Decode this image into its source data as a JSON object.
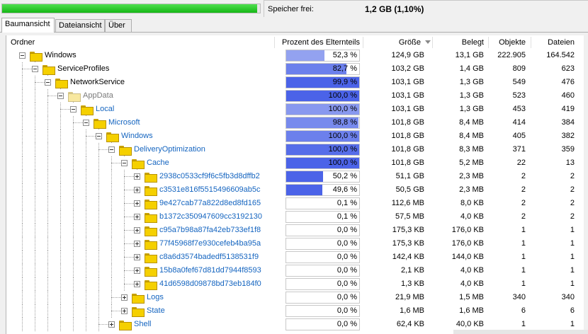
{
  "status": {
    "free_label": "Speicher frei:",
    "free_value": "1,2 GB  (1,10%)",
    "progress_percent": 98.9,
    "progress_color": "#22c022"
  },
  "tabs": [
    {
      "label": "Baumansicht",
      "active": true
    },
    {
      "label": "Dateiansicht",
      "active": false
    },
    {
      "label": "Über",
      "active": false
    }
  ],
  "columns": {
    "folder": "Ordner",
    "percent": "Prozent des Elternteils",
    "size": "Größe",
    "allocated": "Belegt",
    "objects": "Objekte",
    "files": "Dateien"
  },
  "colors": {
    "bar_dark": "#3a55e6",
    "bar_light": "#a9b5f3",
    "link_blue": "#1565c0"
  },
  "rows": [
    {
      "name": "Windows",
      "level": 0,
      "expander": "minus",
      "style": "normal",
      "percent": "52,3 %",
      "pct": 52.3,
      "shade": 0.2,
      "size": "124,9 GB",
      "allocated": "13,1 GB",
      "objects": "222.905",
      "files": "164.542"
    },
    {
      "name": "ServiceProfiles",
      "level": 1,
      "expander": "minus",
      "style": "normal",
      "percent": "82,7 %",
      "pct": 82.7,
      "shade": 0.55,
      "size": "103,2 GB",
      "allocated": "1,4 GB",
      "objects": "809",
      "files": "623"
    },
    {
      "name": "NetworkService",
      "level": 2,
      "expander": "minus",
      "style": "normal",
      "percent": "99,9 %",
      "pct": 99.9,
      "shade": 0.85,
      "size": "103,1 GB",
      "allocated": "1,3 GB",
      "objects": "549",
      "files": "476"
    },
    {
      "name": "AppData",
      "level": 3,
      "expander": "minus",
      "style": "grey",
      "percent": "100,0 %",
      "pct": 100,
      "shade": 0.85,
      "size": "103,1 GB",
      "allocated": "1,3 GB",
      "objects": "523",
      "files": "460"
    },
    {
      "name": "Local",
      "level": 4,
      "expander": "minus",
      "style": "blue",
      "percent": "100,0 %",
      "pct": 100,
      "shade": 0.3,
      "size": "103,1 GB",
      "allocated": "1,3 GB",
      "objects": "453",
      "files": "419"
    },
    {
      "name": "Microsoft",
      "level": 5,
      "expander": "minus",
      "style": "blue",
      "percent": "98,8 %",
      "pct": 98.8,
      "shade": 0.45,
      "size": "101,8 GB",
      "allocated": "8,4 MB",
      "objects": "414",
      "files": "384"
    },
    {
      "name": "Windows",
      "level": 6,
      "expander": "minus",
      "style": "blue",
      "percent": "100,0 %",
      "pct": 100,
      "shade": 0.55,
      "size": "101,8 GB",
      "allocated": "8,4 MB",
      "objects": "405",
      "files": "382"
    },
    {
      "name": "DeliveryOptimization",
      "level": 7,
      "expander": "minus",
      "style": "blue",
      "percent": "100,0 %",
      "pct": 100,
      "shade": 0.75,
      "size": "101,8 GB",
      "allocated": "8,3 MB",
      "objects": "371",
      "files": "359"
    },
    {
      "name": "Cache",
      "level": 8,
      "expander": "minus",
      "style": "blue",
      "percent": "100,0 %",
      "pct": 100,
      "shade": 0.85,
      "size": "101,8 GB",
      "allocated": "5,2 MB",
      "objects": "22",
      "files": "13"
    },
    {
      "name": "2938c0533cf9f6c5fb3d8dffb2",
      "level": 9,
      "expander": "plus",
      "style": "blue",
      "percent": "50,2 %",
      "pct": 50.2,
      "shade": 0.85,
      "size": "51,1 GB",
      "allocated": "2,3 MB",
      "objects": "2",
      "files": "2"
    },
    {
      "name": "c3531e816f5515496609ab5c",
      "level": 9,
      "expander": "plus",
      "style": "blue",
      "percent": "49,6 %",
      "pct": 49.6,
      "shade": 0.85,
      "size": "50,5 GB",
      "allocated": "2,3 MB",
      "objects": "2",
      "files": "2"
    },
    {
      "name": "9e427cab77a822d8ed8fd165",
      "level": 9,
      "expander": "plus",
      "style": "blue",
      "percent": "0,1 %",
      "pct": 0.1,
      "shade": 0.85,
      "size": "112,6 MB",
      "allocated": "8,0 KB",
      "objects": "2",
      "files": "2"
    },
    {
      "name": "b1372c350947609cc3192130",
      "level": 9,
      "expander": "plus",
      "style": "blue",
      "percent": "0,1 %",
      "pct": 0.1,
      "shade": 0.85,
      "size": "57,5 MB",
      "allocated": "4,0 KB",
      "objects": "2",
      "files": "2"
    },
    {
      "name": "c95a7b98a87fa42eb733ef1f8",
      "level": 9,
      "expander": "plus",
      "style": "blue",
      "percent": "0,0 %",
      "pct": 0,
      "shade": 0.85,
      "size": "175,3 KB",
      "allocated": "176,0 KB",
      "objects": "1",
      "files": "1"
    },
    {
      "name": "77f45968f7e930cefeb4ba95a",
      "level": 9,
      "expander": "plus",
      "style": "blue",
      "percent": "0,0 %",
      "pct": 0,
      "shade": 0.85,
      "size": "175,3 KB",
      "allocated": "176,0 KB",
      "objects": "1",
      "files": "1"
    },
    {
      "name": "c8a6d3574badedf5138531f9",
      "level": 9,
      "expander": "plus",
      "style": "blue",
      "percent": "0,0 %",
      "pct": 0,
      "shade": 0.85,
      "size": "142,4 KB",
      "allocated": "144,0 KB",
      "objects": "1",
      "files": "1"
    },
    {
      "name": "15b8a0fef67d81dd7944f8593",
      "level": 9,
      "expander": "plus",
      "style": "blue",
      "percent": "0,0 %",
      "pct": 0,
      "shade": 0.85,
      "size": "2,1 KB",
      "allocated": "4,0 KB",
      "objects": "1",
      "files": "1"
    },
    {
      "name": "41d6598d09878bd73eb184f0",
      "level": 9,
      "expander": "plus",
      "style": "blue",
      "percent": "0,0 %",
      "pct": 0,
      "shade": 0.85,
      "size": "1,3 KB",
      "allocated": "4,0 KB",
      "objects": "1",
      "files": "1"
    },
    {
      "name": "Logs",
      "level": 8,
      "expander": "plus",
      "style": "blue",
      "percent": "0,0 %",
      "pct": 0,
      "shade": 0.85,
      "size": "21,9 MB",
      "allocated": "1,5 MB",
      "objects": "340",
      "files": "340"
    },
    {
      "name": "State",
      "level": 8,
      "expander": "plus",
      "style": "blue",
      "percent": "0,0 %",
      "pct": 0,
      "shade": 0.85,
      "size": "1,6 MB",
      "allocated": "1,6 MB",
      "objects": "6",
      "files": "6"
    },
    {
      "name": "Shell",
      "level": 7,
      "expander": "plus",
      "style": "blue",
      "percent": "0,0 %",
      "pct": 0,
      "shade": 0.85,
      "size": "62,4 KB",
      "allocated": "40,0 KB",
      "objects": "1",
      "files": "1"
    }
  ]
}
